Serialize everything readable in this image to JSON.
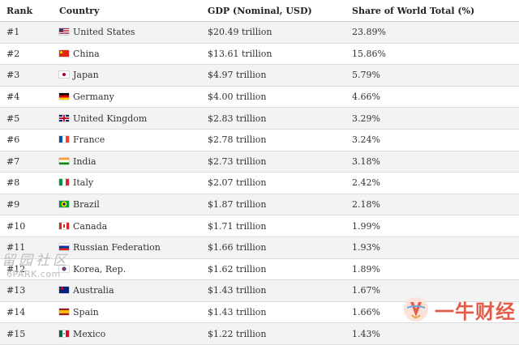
{
  "table": {
    "headers": {
      "rank": "Rank",
      "country": "Country",
      "gdp": "GDP (Nominal, USD)",
      "share": "Share of World Total (%)"
    },
    "rows": [
      {
        "rank": "#1",
        "flag": "us-flag-icon",
        "country": "United States",
        "gdp": "$20.49 trillion",
        "share": "23.89%"
      },
      {
        "rank": "#2",
        "flag": "cn-flag-icon",
        "country": "China",
        "gdp": "$13.61 trillion",
        "share": "15.86%"
      },
      {
        "rank": "#3",
        "flag": "jp-flag-icon",
        "country": "Japan",
        "gdp": "$4.97 trillion",
        "share": "5.79%"
      },
      {
        "rank": "#4",
        "flag": "de-flag-icon",
        "country": "Germany",
        "gdp": "$4.00 trillion",
        "share": "4.66%"
      },
      {
        "rank": "#5",
        "flag": "gb-flag-icon",
        "country": "United Kingdom",
        "gdp": "$2.83 trillion",
        "share": "3.29%"
      },
      {
        "rank": "#6",
        "flag": "fr-flag-icon",
        "country": "France",
        "gdp": "$2.78 trillion",
        "share": "3.24%"
      },
      {
        "rank": "#7",
        "flag": "in-flag-icon",
        "country": "India",
        "gdp": "$2.73 trillion",
        "share": "3.18%"
      },
      {
        "rank": "#8",
        "flag": "it-flag-icon",
        "country": "Italy",
        "gdp": "$2.07 trillion",
        "share": "2.42%"
      },
      {
        "rank": "#9",
        "flag": "br-flag-icon",
        "country": "Brazil",
        "gdp": "$1.87 trillion",
        "share": "2.18%"
      },
      {
        "rank": "#10",
        "flag": "ca-flag-icon",
        "country": "Canada",
        "gdp": "$1.71 trillion",
        "share": "1.99%"
      },
      {
        "rank": "#11",
        "flag": "ru-flag-icon",
        "country": "Russian Federation",
        "gdp": "$1.66 trillion",
        "share": "1.93%"
      },
      {
        "rank": "#12",
        "flag": "kr-flag-icon",
        "country": "Korea, Rep.",
        "gdp": "$1.62 trillion",
        "share": "1.89%"
      },
      {
        "rank": "#13",
        "flag": "au-flag-icon",
        "country": "Australia",
        "gdp": "$1.43 trillion",
        "share": "1.67%"
      },
      {
        "rank": "#14",
        "flag": "es-flag-icon",
        "country": "Spain",
        "gdp": "$1.43 trillion",
        "share": "1.66%"
      },
      {
        "rank": "#15",
        "flag": "mx-flag-icon",
        "country": "Mexico",
        "gdp": "$1.22 trillion",
        "share": "1.43%"
      }
    ]
  },
  "watermarks": {
    "left_cn": "留园社区",
    "left_en": "6PARK.com",
    "right": "一牛财经"
  },
  "colors": {
    "row_alt": "#f3f3f3",
    "row": "#ffffff",
    "border": "#dcdcdc",
    "watermark_right": "#e25c4a"
  }
}
